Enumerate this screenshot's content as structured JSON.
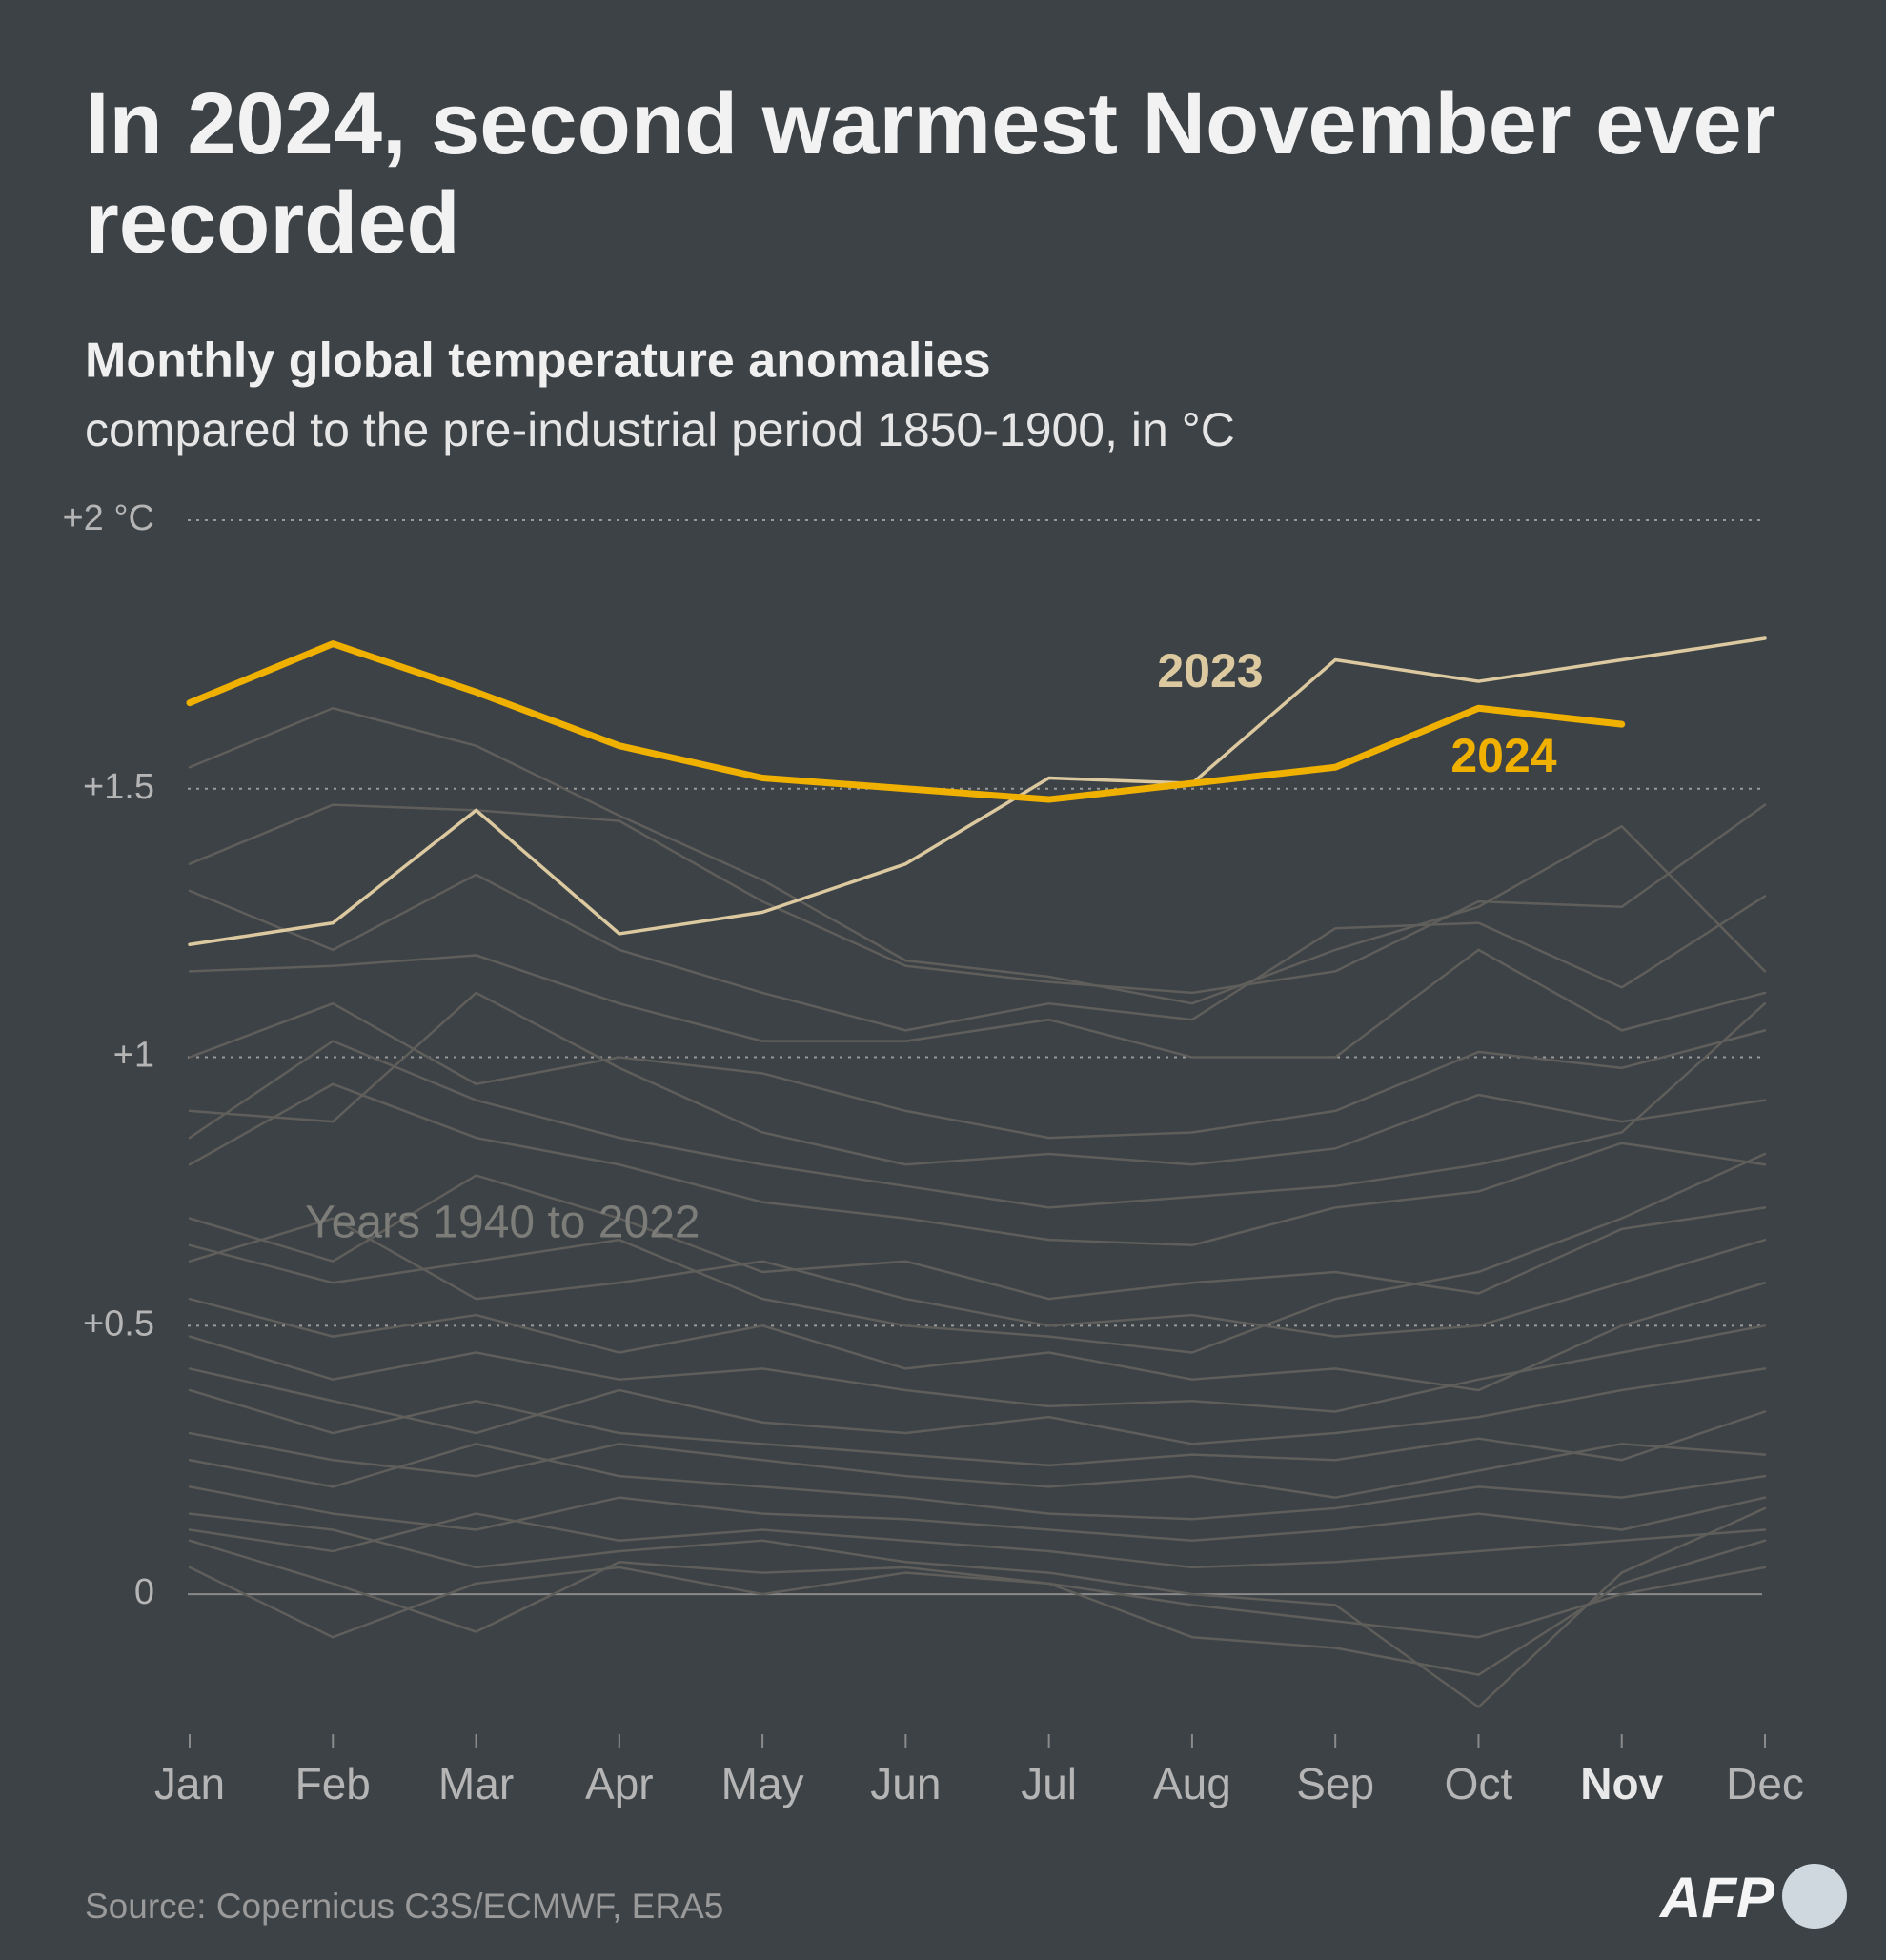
{
  "chart_data": {
    "type": "line",
    "title": "In 2024, second warmest November ever recorded",
    "subtitle": "Monthly global temperature anomalies",
    "subtitle_2": "compared to the pre-industrial period 1850-1900, in °C",
    "source": "Source: Copernicus C3S/ECMWF, ERA5",
    "logo": "AFP",
    "annotations": [
      "2023",
      "2024",
      "Years 1940 to 2022"
    ],
    "categories": [
      "Jan",
      "Feb",
      "Mar",
      "Apr",
      "May",
      "Jun",
      "Jul",
      "Aug",
      "Sep",
      "Oct",
      "Nov",
      "Dec"
    ],
    "ylim": [
      -0.25,
      2
    ],
    "yticks": [
      0,
      {
        "value": 0.5,
        "label": "+0.5"
      },
      {
        "value": 1,
        "label": "+1"
      },
      {
        "value": 1.5,
        "label": "+1.5"
      },
      {
        "value": 2,
        "label": "+2 °C"
      }
    ],
    "grid": true,
    "series": [
      {
        "color": "#5f5e5b",
        "values": [
          1.54,
          1.65,
          1.58,
          1.45,
          1.33,
          1.18,
          1.15,
          1.1,
          1.2,
          1.28,
          1.43,
          1.16
        ]
      },
      {
        "color": "#5f5e5b",
        "values": [
          1.36,
          1.47,
          1.46,
          1.44,
          1.29,
          1.17,
          1.14,
          1.12,
          1.16,
          1.29,
          1.28,
          1.47
        ]
      },
      {
        "color": "#5f5e5b",
        "values": [
          1.31,
          1.2,
          1.34,
          1.2,
          1.12,
          1.05,
          1.1,
          1.07,
          1.24,
          1.25,
          1.13,
          1.3
        ]
      },
      {
        "color": "#5f5e5b",
        "values": [
          1.16,
          1.17,
          1.19,
          1.1,
          1.03,
          1.03,
          1.07,
          1.0,
          1.0,
          1.2,
          1.05,
          1.12
        ]
      },
      {
        "color": "#5f5e5b",
        "values": [
          1.0,
          1.1,
          0.95,
          1.0,
          0.97,
          0.9,
          0.85,
          0.86,
          0.9,
          1.01,
          0.98,
          1.05
        ]
      },
      {
        "color": "#5f5e5b",
        "values": [
          0.9,
          0.88,
          1.12,
          0.98,
          0.86,
          0.8,
          0.82,
          0.8,
          0.83,
          0.93,
          0.88,
          0.92
        ]
      },
      {
        "color": "#5f5e5b",
        "values": [
          0.85,
          1.03,
          0.92,
          0.85,
          0.8,
          0.76,
          0.72,
          0.74,
          0.76,
          0.8,
          0.86,
          1.1
        ]
      },
      {
        "color": "#5f5e5b",
        "values": [
          0.8,
          0.95,
          0.85,
          0.8,
          0.73,
          0.7,
          0.66,
          0.65,
          0.72,
          0.75,
          0.84,
          0.8
        ]
      },
      {
        "color": "#5f5e5b",
        "values": [
          0.7,
          0.62,
          0.78,
          0.7,
          0.6,
          0.62,
          0.55,
          0.58,
          0.6,
          0.56,
          0.68,
          0.72
        ]
      },
      {
        "color": "#5f5e5b",
        "values": [
          0.65,
          0.58,
          0.62,
          0.66,
          0.55,
          0.5,
          0.48,
          0.45,
          0.55,
          0.6,
          0.7,
          0.82
        ]
      },
      {
        "color": "#5f5e5b",
        "values": [
          0.62,
          0.7,
          0.55,
          0.58,
          0.62,
          0.55,
          0.5,
          0.52,
          0.48,
          0.5,
          0.58,
          0.66
        ]
      },
      {
        "color": "#5f5e5b",
        "values": [
          0.55,
          0.48,
          0.52,
          0.45,
          0.5,
          0.42,
          0.45,
          0.4,
          0.42,
          0.38,
          0.5,
          0.58
        ]
      },
      {
        "color": "#5f5e5b",
        "values": [
          0.48,
          0.4,
          0.45,
          0.4,
          0.42,
          0.38,
          0.35,
          0.36,
          0.34,
          0.4,
          0.45,
          0.5
        ]
      },
      {
        "color": "#5f5e5b",
        "values": [
          0.42,
          0.36,
          0.3,
          0.38,
          0.32,
          0.3,
          0.33,
          0.28,
          0.3,
          0.33,
          0.38,
          0.42
        ]
      },
      {
        "color": "#5f5e5b",
        "values": [
          0.38,
          0.3,
          0.36,
          0.3,
          0.28,
          0.26,
          0.24,
          0.26,
          0.25,
          0.29,
          0.25,
          0.34
        ]
      },
      {
        "color": "#5f5e5b",
        "values": [
          0.3,
          0.25,
          0.22,
          0.28,
          0.25,
          0.22,
          0.2,
          0.22,
          0.18,
          0.23,
          0.28,
          0.26
        ]
      },
      {
        "color": "#5f5e5b",
        "values": [
          0.25,
          0.2,
          0.28,
          0.22,
          0.2,
          0.18,
          0.15,
          0.14,
          0.16,
          0.2,
          0.18,
          0.22
        ]
      },
      {
        "color": "#5f5e5b",
        "values": [
          0.2,
          0.15,
          0.12,
          0.18,
          0.15,
          0.14,
          0.12,
          0.1,
          0.12,
          0.15,
          0.12,
          0.18
        ]
      },
      {
        "color": "#5f5e5b",
        "values": [
          0.12,
          0.08,
          0.15,
          0.1,
          0.12,
          0.1,
          0.08,
          0.05,
          0.06,
          0.08,
          0.1,
          0.12
        ]
      },
      {
        "color": "#5f5e5b",
        "values": [
          0.05,
          -0.08,
          0.02,
          0.05,
          0.0,
          0.04,
          0.02,
          -0.02,
          -0.05,
          -0.08,
          0.0,
          0.05
        ]
      },
      {
        "color": "#5f5e5b",
        "values": [
          0.1,
          0.02,
          -0.07,
          0.06,
          0.04,
          0.05,
          0.02,
          -0.08,
          -0.1,
          -0.15,
          0.02,
          0.1
        ]
      },
      {
        "color": "#5f5e5b",
        "values": [
          0.15,
          0.12,
          0.05,
          0.08,
          0.1,
          0.06,
          0.04,
          0.0,
          -0.02,
          -0.21,
          0.04,
          0.16
        ]
      },
      {
        "name": "2023",
        "color": "#dcc9a0",
        "values": [
          1.21,
          1.25,
          1.46,
          1.23,
          1.27,
          1.36,
          1.52,
          1.51,
          1.74,
          1.7,
          1.74,
          1.78
        ]
      },
      {
        "name": "2024",
        "color": "#f0b000",
        "values": [
          1.66,
          1.77,
          1.68,
          1.58,
          1.52,
          1.5,
          1.48,
          1.51,
          1.54,
          1.65,
          1.62,
          null
        ]
      }
    ]
  }
}
